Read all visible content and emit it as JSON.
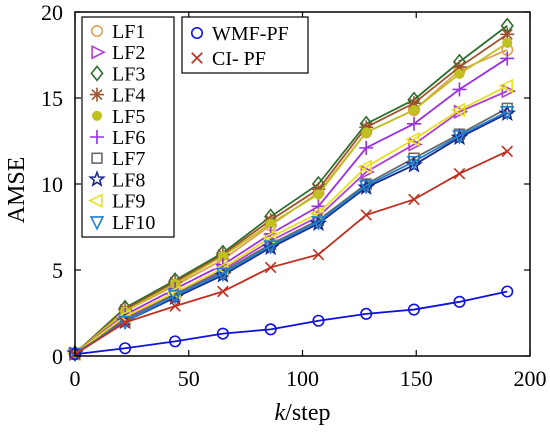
{
  "chart_data": {
    "type": "line",
    "title": "",
    "xlabel_italic": "k",
    "xlabel_rest": "/step",
    "ylabel": "AMSE",
    "xlim": [
      0,
      200
    ],
    "ylim": [
      0,
      20
    ],
    "xticks": [
      0,
      50,
      100,
      150,
      200
    ],
    "yticks": [
      0,
      5,
      10,
      15,
      20
    ],
    "grid": false,
    "x": [
      0,
      22,
      44,
      65,
      86,
      107,
      128,
      149,
      169,
      190
    ],
    "series": [
      {
        "name": "LF1",
        "color": "#e0a050",
        "marker": "circle-open",
        "values": [
          0.15,
          2.6,
          4.1,
          5.6,
          7.6,
          9.5,
          13.0,
          14.3,
          16.6,
          17.8
        ]
      },
      {
        "name": "LF2",
        "color": "#b040d0",
        "marker": "triangle-right-open",
        "values": [
          0.15,
          2.2,
          3.6,
          5.0,
          6.7,
          8.1,
          10.7,
          12.3,
          14.2,
          15.4
        ]
      },
      {
        "name": "LF3",
        "color": "#2e6e2e",
        "marker": "diamond-open",
        "values": [
          0.15,
          2.8,
          4.4,
          6.0,
          8.1,
          10.0,
          13.5,
          14.9,
          17.1,
          19.2
        ]
      },
      {
        "name": "LF4",
        "color": "#a0522d",
        "marker": "asterisk",
        "values": [
          0.15,
          2.7,
          4.3,
          5.9,
          7.9,
          9.7,
          13.3,
          14.7,
          16.8,
          18.7
        ]
      },
      {
        "name": "LF5",
        "color": "#c0c020",
        "marker": "circle-filled",
        "values": [
          0.15,
          2.6,
          4.2,
          5.8,
          7.7,
          9.4,
          13.0,
          14.3,
          16.4,
          18.2
        ]
      },
      {
        "name": "LF6",
        "color": "#9a30e0",
        "marker": "plus",
        "values": [
          0.15,
          2.4,
          3.9,
          5.3,
          7.1,
          8.7,
          12.1,
          13.5,
          15.5,
          17.3
        ]
      },
      {
        "name": "LF7",
        "color": "#6a6a6a",
        "marker": "square-open",
        "values": [
          0.15,
          2.1,
          3.6,
          4.9,
          6.5,
          7.9,
          10.0,
          11.5,
          12.9,
          14.4
        ]
      },
      {
        "name": "LF8",
        "color": "#1a2a8c",
        "marker": "star-open",
        "values": [
          0.15,
          2.0,
          3.4,
          4.7,
          6.3,
          7.7,
          9.8,
          11.1,
          12.7,
          14.1
        ]
      },
      {
        "name": "LF9",
        "color": "#e8e020",
        "marker": "triangle-left-open",
        "values": [
          0.15,
          2.3,
          3.7,
          5.1,
          6.9,
          8.3,
          11.0,
          12.6,
          14.3,
          15.7
        ]
      },
      {
        "name": "LF10",
        "color": "#2080d0",
        "marker": "triangle-down-open",
        "values": [
          0.15,
          2.0,
          3.5,
          4.8,
          6.4,
          7.8,
          9.9,
          11.3,
          12.8,
          14.2
        ]
      },
      {
        "name": "WMF-PF",
        "color": "#1010e0",
        "marker": "circle-open",
        "values": [
          0.1,
          0.45,
          0.85,
          1.3,
          1.55,
          2.05,
          2.45,
          2.7,
          3.15,
          3.75
        ]
      },
      {
        "name": "CI- PF",
        "color": "#c03020",
        "marker": "x",
        "values": [
          0.1,
          1.95,
          2.9,
          3.75,
          5.15,
          5.9,
          8.2,
          9.1,
          10.6,
          11.9
        ]
      }
    ]
  }
}
